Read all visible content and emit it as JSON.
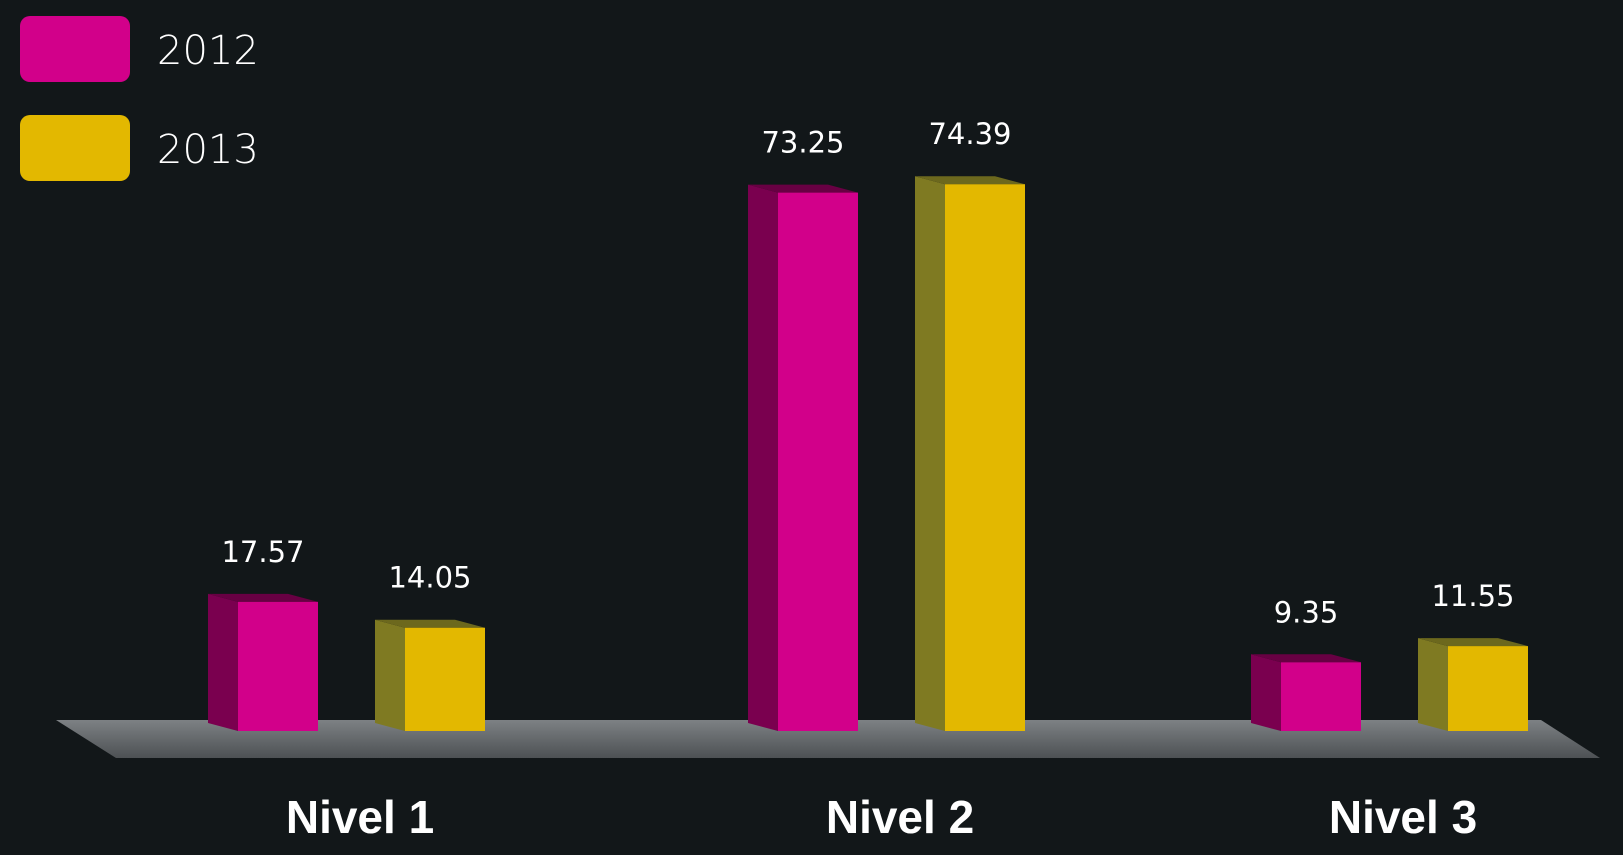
{
  "chart_data": {
    "type": "bar",
    "categories": [
      "Nivel 1",
      "Nivel 2",
      "Nivel 3"
    ],
    "series": [
      {
        "name": "2012",
        "color": "#d2008a",
        "values": [
          17.57,
          73.25,
          9.35
        ]
      },
      {
        "name": "2013",
        "color": "#e3b800",
        "values": [
          14.05,
          74.39,
          11.55
        ]
      }
    ],
    "data_labels": [
      [
        "17.57",
        "73.25",
        "9.35"
      ],
      [
        "14.05",
        "74.39",
        "11.55"
      ]
    ],
    "title": "",
    "xlabel": "",
    "ylabel": "",
    "ylim": [
      0,
      80
    ],
    "grid": false,
    "legend_position": "top-left",
    "style": "3d-bars",
    "background": "#121719"
  }
}
